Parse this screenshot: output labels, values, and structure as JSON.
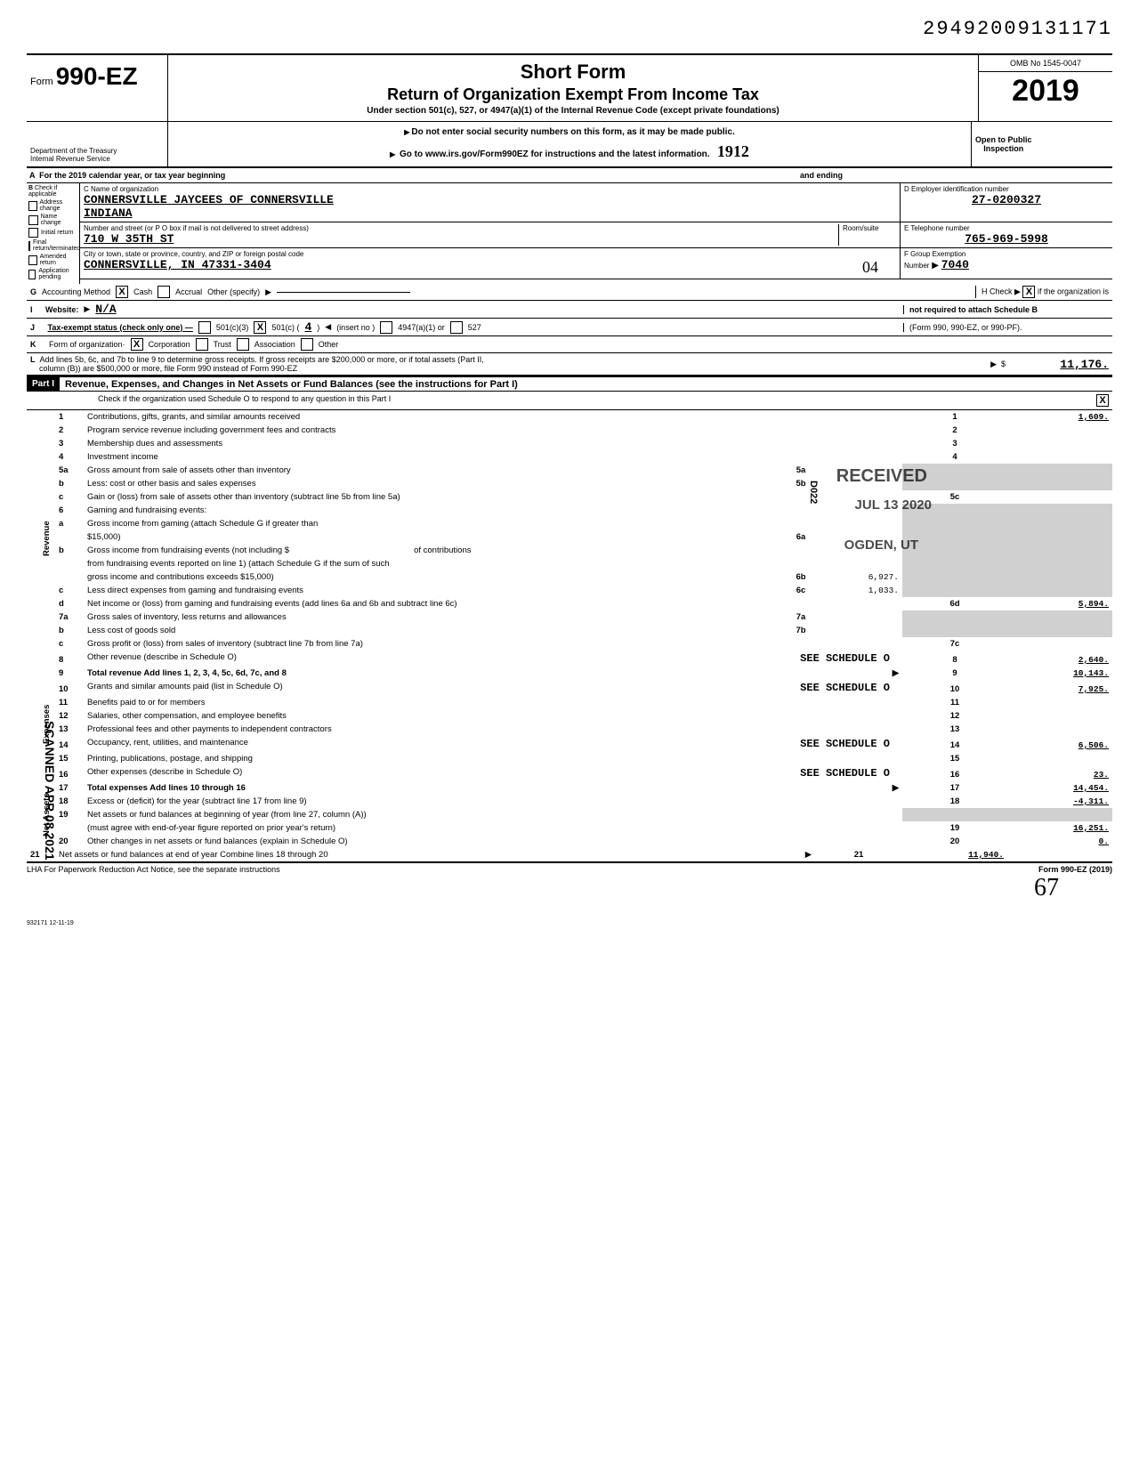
{
  "doc_id": "29492009131171",
  "form": {
    "prefix": "Form",
    "number": "990-EZ",
    "title1": "Short Form",
    "title2": "Return of Organization Exempt From Income Tax",
    "subtitle": "Under section 501(c), 527, or 4947(a)(1) of the Internal Revenue Code (except private foundations)",
    "warn1": "Do not enter social security numbers on this form, as it may be made public.",
    "warn2": "Go to www.irs.gov/Form990EZ for instructions and the latest information.",
    "omb": "OMB No  1545-0047",
    "year": "2019",
    "open": "Open to Public",
    "inspection": "Inspection",
    "dept1": "Department of the Treasury",
    "dept2": "Internal Revenue Service",
    "hand_stamp": "1912"
  },
  "rowA": "For the 2019 calendar year, or tax year beginning",
  "rowA_end": "and ending",
  "sectionB": {
    "header": "Check if applicable",
    "opts": [
      "Address change",
      "Name change",
      "Initial return",
      "Final return/terminated",
      "Amended return",
      "Application pending"
    ]
  },
  "org": {
    "c_label": "C Name of organization",
    "name1": "CONNERSVILLE JAYCEES OF CONNERSVILLE",
    "name2": "INDIANA",
    "addr_label": "Number and street (or P O  box if mail is not delivered to street address)",
    "room_label": "Room/suite",
    "addr": "710 W 35TH ST",
    "city_label": "City or town, state or province, country, and ZIP or foreign postal code",
    "city": "CONNERSVILLE, IN  47331-3404",
    "hand04": "04"
  },
  "right_col": {
    "d_label": "D Employer identification number",
    "ein": "27-0200327",
    "e_label": "E  Telephone number",
    "phone": "765-969-5998",
    "f_label": "F  Group Exemption",
    "f_label2": "Number",
    "group": "7040",
    "h_label": "H Check",
    "h_text": "if the organization is",
    "h_text2": "not required to attach Schedule B",
    "h_text3": "(Form 990, 990-EZ, or 990-PF)."
  },
  "rowG": {
    "label": "Accounting Method",
    "cash": "Cash",
    "accrual": "Accrual",
    "other": "Other (specify)"
  },
  "rowI": {
    "label": "Website:",
    "val": "N/A"
  },
  "rowJ": {
    "label": "Tax-exempt status (check only one) —",
    "o1": "501(c)(3)",
    "o2": "501(c) (",
    "o2v": "4",
    "o2e": ")",
    "ins": "(insert no )",
    "o3": "4947(a)(1) or",
    "o4": "527"
  },
  "rowK": {
    "label": "Form of organization·",
    "corp": "Corporation",
    "trust": "Trust",
    "assoc": "Association",
    "other": "Other"
  },
  "rowL": {
    "text1": "Add lines 5b, 6c, and 7b to line 9 to determine gross receipts. If gross receipts are $200,000 or more, or if total assets (Part II,",
    "text2": "column (B)) are $500,000 or more, file Form 990 instead of Form 990-EZ",
    "amount": "11,176."
  },
  "part1": {
    "label": "Part I",
    "title": "Revenue, Expenses, and Changes in Net Assets or Fund Balances (see the instructions for Part I)",
    "check_text": "Check if the organization used Schedule O to respond to any question in this Part I"
  },
  "side_labels": {
    "revenue": "Revenue",
    "expenses": "Expenses",
    "netassets": "Net Assets"
  },
  "stamps": {
    "received": "RECEIVED",
    "date": "JUL 13 2020",
    "ogden": "OGDEN, UT",
    "d022": "D022",
    "scanned": "SCANNED APR 08 2021"
  },
  "lines": [
    {
      "n": "1",
      "d": "Contributions, gifts, grants, and similar amounts received",
      "r": "1",
      "v": "1,609."
    },
    {
      "n": "2",
      "d": "Program service revenue including government fees and contracts",
      "r": "2",
      "v": ""
    },
    {
      "n": "3",
      "d": "Membership dues and assessments",
      "r": "3",
      "v": ""
    },
    {
      "n": "4",
      "d": "Investment income",
      "r": "4",
      "v": ""
    },
    {
      "n": "5a",
      "d": "Gross amount from sale of assets other than inventory",
      "mid_r": "5a",
      "mid_v": ""
    },
    {
      "n": "b",
      "d": "Less: cost or other basis and sales expenses",
      "mid_r": "5b",
      "mid_v": ""
    },
    {
      "n": "c",
      "d": "Gain or (loss) from sale of assets other than inventory (subtract line 5b from line 5a)",
      "r": "5c",
      "v": ""
    },
    {
      "n": "6",
      "d": "Gaming and fundraising events:"
    },
    {
      "n": "a",
      "d": "Gross income from gaming (attach Schedule G if greater than"
    },
    {
      "n": "",
      "d": "$15,000)",
      "mid_r": "6a",
      "mid_v": ""
    },
    {
      "n": "b",
      "d": "Gross income from fundraising events (not including $",
      "extra": "of contributions"
    },
    {
      "n": "",
      "d": "from fundraising events reported on line 1) (attach Schedule G if the sum of such"
    },
    {
      "n": "",
      "d": "gross income and contributions exceeds $15,000)",
      "mid_r": "6b",
      "mid_v": "6,927."
    },
    {
      "n": "c",
      "d": "Less  direct expenses from gaming and fundraising events",
      "mid_r": "6c",
      "mid_v": "1,033."
    },
    {
      "n": "d",
      "d": "Net income or (loss) from gaming and fundraising events (add lines 6a and 6b and subtract line 6c)",
      "r": "6d",
      "v": "5,894."
    },
    {
      "n": "7a",
      "d": "Gross sales of inventory, less returns and allowances",
      "mid_r": "7a",
      "mid_v": ""
    },
    {
      "n": "b",
      "d": "Less  cost of goods sold",
      "mid_r": "7b",
      "mid_v": ""
    },
    {
      "n": "c",
      "d": "Gross profit or (loss) from sales of inventory (subtract line 7b from line 7a)",
      "r": "7c",
      "v": ""
    },
    {
      "n": "8",
      "d": "Other revenue (describe in Schedule O)",
      "sched": "SEE SCHEDULE O",
      "r": "8",
      "v": "2,640."
    },
    {
      "n": "9",
      "d": "Total revenue  Add lines 1, 2, 3, 4, 5c, 6d, 7c, and 8",
      "arrow": true,
      "r": "9",
      "v": "10,143.",
      "bold": true
    },
    {
      "n": "10",
      "d": "Grants and similar amounts paid (list in Schedule O)",
      "sched": "SEE SCHEDULE O",
      "r": "10",
      "v": "7,925."
    },
    {
      "n": "11",
      "d": "Benefits paid to or for members",
      "r": "11",
      "v": ""
    },
    {
      "n": "12",
      "d": "Salaries, other compensation, and employee benefits",
      "r": "12",
      "v": ""
    },
    {
      "n": "13",
      "d": "Professional fees and other payments to independent contractors",
      "r": "13",
      "v": ""
    },
    {
      "n": "14",
      "d": "Occupancy, rent, utilities, and maintenance",
      "sched": "SEE SCHEDULE O",
      "r": "14",
      "v": "6,506."
    },
    {
      "n": "15",
      "d": "Printing, publications, postage, and shipping",
      "r": "15",
      "v": ""
    },
    {
      "n": "16",
      "d": "Other expenses (describe in Schedule O)",
      "sched": "SEE SCHEDULE O",
      "r": "16",
      "v": "23."
    },
    {
      "n": "17",
      "d": "Total expenses  Add lines 10 through 16",
      "arrow": true,
      "r": "17",
      "v": "14,454.",
      "bold": true
    },
    {
      "n": "18",
      "d": "Excess or (deficit) for the year (subtract line 17 from line 9)",
      "r": "18",
      "v": "-4,311."
    },
    {
      "n": "19",
      "d": "Net assets or fund balances at beginning of year (from line 27, column (A))"
    },
    {
      "n": "",
      "d": "(must agree with end-of-year figure reported on prior year's return)",
      "r": "19",
      "v": "16,251."
    },
    {
      "n": "20",
      "d": "Other changes in net assets or fund balances (explain in Schedule O)",
      "r": "20",
      "v": "0."
    },
    {
      "n": "21",
      "d": "Net assets or fund balances at end of year  Combine lines 18 through 20",
      "arrow": true,
      "r": "21",
      "v": "11,940."
    }
  ],
  "footer": {
    "lha": "LHA  For Paperwork Reduction Act Notice, see the separate instructions",
    "form": "Form 990-EZ (2019)",
    "code": "932171  12-11-19",
    "sig": "67"
  }
}
